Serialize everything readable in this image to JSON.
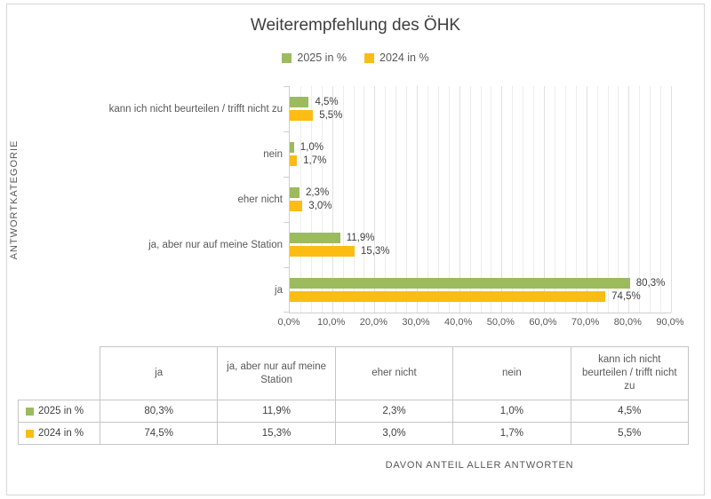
{
  "title": "Weiterempfehlung des ÖHK",
  "colors": {
    "series_2025": "#9cbb5e",
    "series_2024": "#fbbc14",
    "grid_minor": "#ededed",
    "grid_major": "#e0e0e0",
    "axis_line": "#cfcfcf",
    "table_border": "#c6c6c6",
    "title_text": "#3f3f3f",
    "label_text": "#595959",
    "value_text": "#404040"
  },
  "legend": {
    "items": [
      {
        "label": "2025 in %",
        "color": "#9cbb5e"
      },
      {
        "label": "2024 in %",
        "color": "#fbbc14"
      }
    ]
  },
  "chart_data": {
    "type": "bar",
    "orientation": "horizontal",
    "title": "Weiterempfehlung des ÖHK",
    "y_axis_title": "ANTWORTKATEGORIE",
    "x_axis_title": "DAVON ANTEIL ALLER ANTWORTEN",
    "categories_top_to_bottom": [
      "kann ich nicht beurteilen / trifft nicht zu",
      "nein",
      "eher nicht",
      "ja, aber nur auf meine Station",
      "ja"
    ],
    "series": [
      {
        "name": "2025 in %",
        "color": "#9cbb5e",
        "values": [
          4.5,
          1.0,
          2.3,
          11.9,
          80.3
        ],
        "labels": [
          "4,5%",
          "1,0%",
          "2,3%",
          "11,9%",
          "80,3%"
        ]
      },
      {
        "name": "2024 in %",
        "color": "#fbbc14",
        "values": [
          5.5,
          1.7,
          3.0,
          15.3,
          74.5
        ],
        "labels": [
          "5,5%",
          "1,7%",
          "3,0%",
          "15,3%",
          "74,5%"
        ]
      }
    ],
    "xlim": [
      0,
      90
    ],
    "x_tick_step": 10,
    "x_ticks": [
      "0,0%",
      "10,0%",
      "20,0%",
      "30,0%",
      "40,0%",
      "50,0%",
      "60,0%",
      "70,0%",
      "80,0%",
      "90,0%"
    ],
    "gridline_minor_step": 2.5,
    "grid": true,
    "legend_position": "top"
  },
  "table": {
    "columns": [
      "ja",
      "ja, aber nur auf meine Station",
      "eher nicht",
      "nein",
      "kann ich nicht beurteilen / trifft nicht zu"
    ],
    "rows": [
      {
        "label": "2025 in %",
        "color": "#9cbb5e",
        "values": [
          "80,3%",
          "11,9%",
          "2,3%",
          "1,0%",
          "4,5%"
        ]
      },
      {
        "label": "2024 in %",
        "color": "#fbbc14",
        "values": [
          "74,5%",
          "15,3%",
          "3,0%",
          "1,7%",
          "5,5%"
        ]
      }
    ]
  }
}
